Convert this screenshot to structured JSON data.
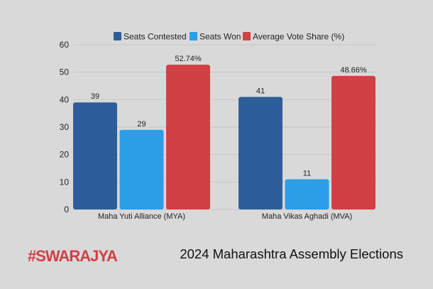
{
  "chart_data": {
    "type": "bar",
    "title": "2024 Maharashtra Assembly Elections",
    "categories": [
      "Maha Yuti Alliance (MYA)",
      "Maha Vikas Aghadi (MVA)"
    ],
    "series": [
      {
        "name": "Seats Contested",
        "values": [
          39,
          41
        ],
        "labels": [
          "39",
          "41"
        ],
        "color": "#2d5e99"
      },
      {
        "name": "Seats Won",
        "values": [
          29,
          11
        ],
        "labels": [
          "29",
          "11"
        ],
        "color": "#2b9de9"
      },
      {
        "name": "Average Vote Share (%)",
        "values": [
          52.74,
          48.66
        ],
        "labels": [
          "52.74%",
          "48.66%"
        ],
        "color": "#d04044"
      }
    ],
    "yticks": [
      "0",
      "10",
      "20",
      "30",
      "40",
      "50",
      "60"
    ],
    "ylim": [
      0,
      60
    ],
    "grid": true,
    "legend": "top"
  },
  "branding": {
    "logo": "#SWARAJYA",
    "logo_color": "#d04044"
  }
}
